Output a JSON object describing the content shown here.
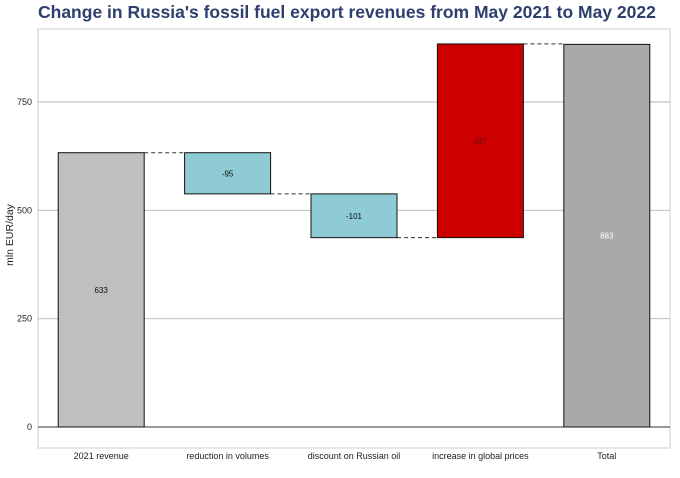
{
  "chart_data": {
    "type": "waterfall",
    "title": "Change in Russia's fossil fuel export revenues from May 2021 to May 2022",
    "xlabel": "",
    "ylabel": "mln EUR/day",
    "ylim": [
      -30,
      910
    ],
    "yticks": [
      0,
      250,
      500,
      750
    ],
    "grid": true,
    "categories": [
      "2021 revenue",
      "reduction in volumes",
      "discount on Russian oil",
      "increase in global prices",
      "Total"
    ],
    "values": [
      633,
      -95,
      -101,
      447,
      883
    ],
    "labels": [
      "633",
      "-95",
      "-101",
      "447",
      "883"
    ],
    "kinds": [
      "total",
      "delta",
      "delta",
      "delta",
      "total"
    ],
    "colors": {
      "start": "#bfbfbf",
      "decrease": "#8ecbd4",
      "increase": "#cc0000",
      "total": "#a9a9a9",
      "label_on_red": "#6e1010",
      "label_on_total": "#ffffff",
      "label_default": "#111111"
    }
  }
}
